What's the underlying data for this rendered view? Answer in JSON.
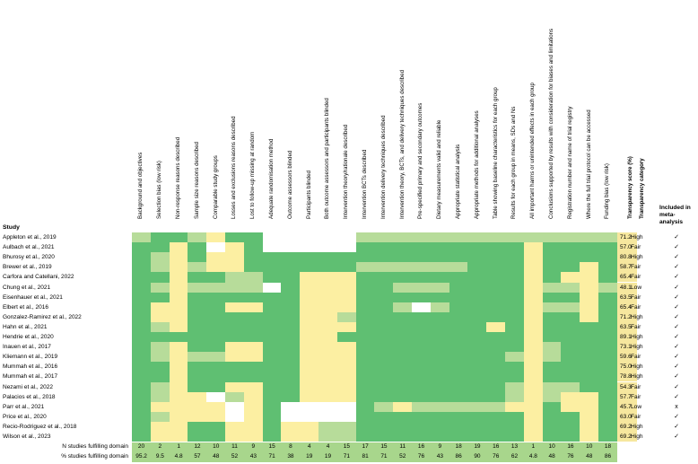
{
  "colors": {
    "green": "#5fbf72",
    "light_green": "#b7dc9a",
    "yellow": "#fcefa2",
    "white": "#ffffff",
    "score_yellow": "#f6e79e",
    "footer_green": "#a8d68c"
  },
  "headers": {
    "study": "Study",
    "score": "Transparency score (%)",
    "category": "Transparency category",
    "included": "Included in meta-analysis"
  },
  "domains": [
    "Background and objectives",
    "Selection bias (low risk)",
    "Non-response reasons described",
    "Sample size reasons described",
    "Comparable study groups",
    "Losses and exclusions reasons described",
    "Lost to follow-up missing at random",
    "Adequate randomisation method",
    "Outcome assessors blinded",
    "Participants blinded",
    "Both outcome assessors and participants blinded",
    "Intervention theory/rationale described",
    "Intervention BCTs described",
    "Intervention delivery techniques described",
    "Intervention theory, BCTs, and delivery techniques described",
    "Pre-specified primary and secondary outcomes",
    "Dietary measurements valid and reliable",
    "Appropriate statistical analysis",
    "Appropriate methods for additional analyses",
    "Table showing baseline characteristics for each group",
    "Results for each group in means, SDs and Ns",
    "All important harms or unintended effects in each group",
    "Conclusions supported by results with consideration for biases and limitations",
    "Registration number and name of trial registry",
    "Where the full trial protocol can be accessed",
    "Funding bias (low risk)"
  ],
  "studies": [
    {
      "name": "Appleton et al., 2019",
      "cells": "LGGLYGGWWWWWLLLLLLLLLLLLLL",
      "score": "71.2",
      "category": "High",
      "included": "✓"
    },
    {
      "name": "Aulbach et al., 2021",
      "cells": "GGYGWYGWWWWWGGGGGGGGGYGGGG",
      "score": "57.0",
      "category": "Fair",
      "included": "✓"
    },
    {
      "name": "Bhurosy et al., 2020",
      "cells": "GLYGYYGGGGGGGGGGGGGGGYGGGG",
      "score": "80.8",
      "category": "High",
      "included": "✓"
    },
    {
      "name": "Brewer et al., 2019",
      "cells": "GLYLYYGGGGGGLLLLLLGGGYGGYG",
      "score": "58.7",
      "category": "Fair",
      "included": "✓"
    },
    {
      "name": "Carfora and Catellani, 2022",
      "cells": "GGYGGLLGGYYYGGGGGGGGGYGYYG",
      "score": "65.4",
      "category": "Fair",
      "included": "✓"
    },
    {
      "name": "Chung et al., 2021",
      "cells": "GLYLLLLWGYYYGGLLLGGGGYLLYL",
      "score": "48.1",
      "category": "Low",
      "included": "✓"
    },
    {
      "name": "Eisenhauer et al., 2021",
      "cells": "GGYGGGGGGYYYGGGGGGGGGYGGYG",
      "score": "63.5",
      "category": "Fair",
      "included": "✓"
    },
    {
      "name": "Elbert et al., 2016",
      "cells": "GYYGGYYGGYYYGGLWLGGGGYLLYG",
      "score": "65.4",
      "category": "Fair",
      "included": "✓"
    },
    {
      "name": "Gonzalez-Ramirez et al., 2022",
      "cells": "GYYGGGGGGYYLGGGGGGGGGYGGYG",
      "score": "71.2",
      "category": "High",
      "included": "✓"
    },
    {
      "name": "Hahn et al., 2021",
      "cells": "GLYGGGGGGYYYGGGGGGGYGYGGGG",
      "score": "63.5",
      "category": "Fair",
      "included": "✓"
    },
    {
      "name": "Hendrie et al., 2020",
      "cells": "GGGGGGGGGYYGGGGGGGGGGYGGGG",
      "score": "89.1",
      "category": "High",
      "included": "✓"
    },
    {
      "name": "Inauen et al., 2017",
      "cells": "GLYGGYYGGYYYGGGGGGGGGYLGGG",
      "score": "73.1",
      "category": "High",
      "included": "✓"
    },
    {
      "name": "Kliemann et al., 2019",
      "cells": "GLYLLYYGGYYYGGGGGGGGLYLGGG",
      "score": "59.6",
      "category": "Fair",
      "included": "✓"
    },
    {
      "name": "Mummah et al., 2016",
      "cells": "GGYGGGGGGYYYGGGGGGGGGYGGGG",
      "score": "75.0",
      "category": "High",
      "included": "✓"
    },
    {
      "name": "Mummah et al., 2017",
      "cells": "GGYGGGGGGYYYGGGGGGGGGYGGGG",
      "score": "78.8",
      "category": "High",
      "included": "✓"
    },
    {
      "name": "Nezami et al., 2022",
      "cells": "GLYGGYYGGYYYGGGGGGGGLYLLGG",
      "score": "54.3",
      "category": "Fair",
      "included": "✓"
    },
    {
      "name": "Palacios et al., 2018",
      "cells": "GLYYWLYGGYYYGGGGGGGGLYLYYG",
      "score": "57.7",
      "category": "Fair",
      "included": "✓"
    },
    {
      "name": "Parr et al., 2021",
      "cells": "GYYYYWYGWWWWGLYLLLLLYYGYYG",
      "score": "45.7",
      "category": "Low",
      "included": "x"
    },
    {
      "name": "Price et al., 2020",
      "cells": "GLYYYWYGWWWWGGGGGGGGGYGGYG",
      "score": "63.0",
      "category": "Fair",
      "included": "✓"
    },
    {
      "name": "Recio-Rodriguez et al., 2018",
      "cells": "GYYGGYYGYYLLGGGGGGGGGYGGYG",
      "score": "69.2",
      "category": "High",
      "included": "✓"
    },
    {
      "name": "Wilson et al., 2023",
      "cells": "GYYGGYYGYYLLGGGGGGGGGYGGYG",
      "score": "69.2",
      "category": "High",
      "included": "✓"
    }
  ],
  "footer": {
    "n_label": "N studies fulfilling domain",
    "pct_label": "% studies fulfilling domain",
    "n_values": [
      "20",
      "2",
      "1",
      "12",
      "10",
      "11",
      "9",
      "15",
      "8",
      "4",
      "4",
      "15",
      "17",
      "15",
      "11",
      "16",
      "9",
      "18",
      "19",
      "16",
      "13",
      "1",
      "10",
      "16",
      "10",
      "18"
    ],
    "pct_values": [
      "95.2",
      "9.5",
      "4.8",
      "57",
      "48",
      "52",
      "43",
      "71",
      "38",
      "19",
      "19",
      "71",
      "81",
      "71",
      "52",
      "76",
      "43",
      "86",
      "90",
      "76",
      "62",
      "4.8",
      "48",
      "76",
      "48",
      "86"
    ]
  }
}
